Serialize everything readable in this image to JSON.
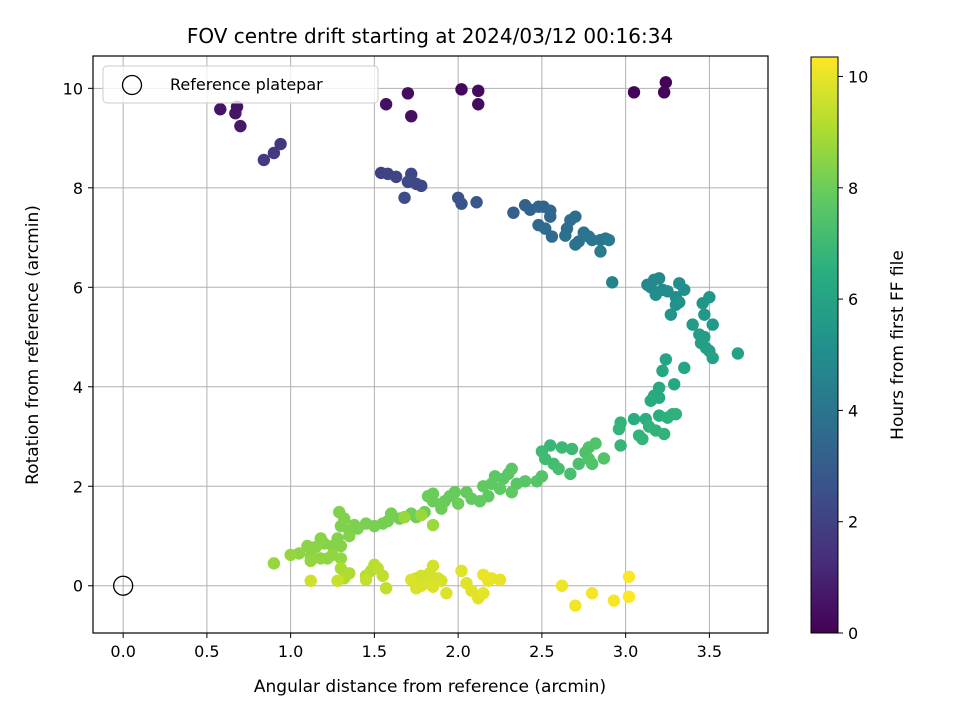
{
  "chart_data": {
    "type": "scatter",
    "title": "FOV centre drift starting at 2024/03/12 00:16:34",
    "xlabel": "Angular distance from reference (arcmin)",
    "ylabel": "Rotation from reference (arcmin)",
    "xlim": [
      -0.18,
      3.85
    ],
    "ylim": [
      -0.95,
      10.65
    ],
    "xticks": [
      0.0,
      0.5,
      1.0,
      1.5,
      2.0,
      2.5,
      3.0,
      3.5
    ],
    "xtick_labels": [
      "0.0",
      "0.5",
      "1.0",
      "1.5",
      "2.0",
      "2.5",
      "3.0",
      "3.5"
    ],
    "yticks": [
      0,
      2,
      4,
      6,
      8,
      10
    ],
    "ytick_labels": [
      "0",
      "2",
      "4",
      "6",
      "8",
      "10"
    ],
    "grid": true,
    "legend": {
      "position": "top-left",
      "entries": [
        "Reference platepar"
      ]
    },
    "reference_point": {
      "x": 0.0,
      "y": 0.0
    },
    "colorbar": {
      "label": "Hours from first FF file",
      "min": 0,
      "max": 10.35,
      "ticks": [
        0,
        2,
        4,
        6,
        8,
        10
      ],
      "tick_labels": [
        "0",
        "2",
        "4",
        "6",
        "8",
        "10"
      ],
      "colormap": "viridis"
    },
    "points": [
      [
        3.24,
        10.12,
        0.05
      ],
      [
        3.05,
        9.92,
        0.1
      ],
      [
        3.23,
        9.92,
        0.15
      ],
      [
        2.02,
        9.98,
        0.2
      ],
      [
        2.12,
        9.95,
        0.25
      ],
      [
        2.12,
        9.68,
        0.3
      ],
      [
        1.7,
        9.9,
        0.35
      ],
      [
        1.72,
        9.44,
        0.4
      ],
      [
        1.57,
        9.68,
        0.45
      ],
      [
        0.68,
        9.63,
        0.5
      ],
      [
        0.58,
        9.58,
        0.55
      ],
      [
        0.67,
        9.5,
        0.6
      ],
      [
        0.7,
        9.24,
        0.7
      ],
      [
        0.94,
        8.88,
        1.6
      ],
      [
        0.9,
        8.7,
        1.7
      ],
      [
        0.84,
        8.56,
        1.8
      ],
      [
        1.54,
        8.3,
        2.0
      ],
      [
        1.58,
        8.28,
        2.05
      ],
      [
        1.63,
        8.22,
        2.1
      ],
      [
        1.72,
        8.28,
        2.15
      ],
      [
        1.75,
        8.08,
        2.2
      ],
      [
        1.78,
        8.04,
        2.25
      ],
      [
        1.7,
        8.12,
        2.3
      ],
      [
        1.68,
        7.8,
        2.4
      ],
      [
        2.0,
        7.8,
        2.6
      ],
      [
        2.02,
        7.68,
        2.7
      ],
      [
        2.11,
        7.71,
        2.8
      ],
      [
        2.33,
        7.5,
        3.1
      ],
      [
        2.4,
        7.65,
        3.2
      ],
      [
        2.43,
        7.56,
        3.25
      ],
      [
        2.48,
        7.62,
        3.3
      ],
      [
        2.51,
        7.62,
        3.35
      ],
      [
        2.55,
        7.42,
        3.4
      ],
      [
        2.55,
        7.54,
        3.45
      ],
      [
        2.48,
        7.25,
        3.5
      ],
      [
        2.52,
        7.18,
        3.55
      ],
      [
        2.56,
        7.02,
        3.6
      ],
      [
        2.65,
        7.18,
        3.65
      ],
      [
        2.67,
        7.35,
        3.7
      ],
      [
        2.7,
        7.42,
        3.75
      ],
      [
        2.64,
        7.04,
        3.8
      ],
      [
        2.72,
        6.92,
        3.85
      ],
      [
        2.7,
        6.86,
        3.9
      ],
      [
        2.75,
        7.1,
        3.95
      ],
      [
        2.78,
        7.02,
        4.0
      ],
      [
        2.8,
        6.95,
        4.05
      ],
      [
        2.85,
        6.95,
        4.1
      ],
      [
        2.88,
        6.98,
        4.15
      ],
      [
        2.9,
        6.95,
        4.2
      ],
      [
        2.85,
        6.72,
        4.25
      ],
      [
        2.92,
        6.1,
        4.6
      ],
      [
        3.13,
        6.05,
        4.7
      ],
      [
        3.17,
        6.15,
        4.75
      ],
      [
        3.2,
        6.18,
        4.8
      ],
      [
        3.15,
        6.0,
        4.85
      ],
      [
        3.22,
        5.95,
        4.9
      ],
      [
        3.18,
        5.85,
        4.95
      ],
      [
        3.25,
        5.92,
        5.0
      ],
      [
        3.3,
        5.8,
        5.05
      ],
      [
        3.32,
        6.08,
        5.1
      ],
      [
        3.35,
        5.95,
        5.15
      ],
      [
        3.3,
        5.65,
        5.2
      ],
      [
        3.32,
        5.7,
        5.25
      ],
      [
        3.27,
        5.45,
        5.3
      ],
      [
        3.46,
        5.68,
        5.4
      ],
      [
        3.5,
        5.8,
        5.45
      ],
      [
        3.47,
        5.45,
        5.5
      ],
      [
        3.52,
        5.25,
        5.55
      ],
      [
        3.4,
        5.25,
        5.6
      ],
      [
        3.44,
        5.05,
        5.65
      ],
      [
        3.47,
        5.0,
        5.7
      ],
      [
        3.45,
        4.88,
        5.75
      ],
      [
        3.48,
        4.78,
        5.8
      ],
      [
        3.5,
        4.72,
        5.85
      ],
      [
        3.52,
        4.58,
        5.9
      ],
      [
        3.67,
        4.67,
        5.95
      ],
      [
        3.24,
        4.55,
        6.0
      ],
      [
        3.35,
        4.38,
        6.05
      ],
      [
        3.22,
        4.32,
        6.1
      ],
      [
        3.29,
        4.05,
        6.15
      ],
      [
        3.2,
        3.98,
        6.2
      ],
      [
        3.17,
        3.82,
        6.25
      ],
      [
        3.2,
        3.78,
        6.3
      ],
      [
        3.15,
        3.72,
        6.35
      ],
      [
        3.05,
        3.35,
        6.4
      ],
      [
        3.12,
        3.35,
        6.45
      ],
      [
        3.2,
        3.42,
        6.5
      ],
      [
        3.25,
        3.38,
        6.55
      ],
      [
        3.28,
        3.45,
        6.6
      ],
      [
        3.3,
        3.45,
        6.62
      ],
      [
        3.14,
        3.2,
        6.65
      ],
      [
        3.18,
        3.12,
        6.68
      ],
      [
        3.23,
        3.05,
        6.7
      ],
      [
        3.08,
        3.02,
        6.72
      ],
      [
        3.1,
        2.95,
        6.74
      ],
      [
        2.97,
        3.28,
        6.76
      ],
      [
        2.96,
        3.15,
        6.78
      ],
      [
        2.97,
        2.82,
        6.8
      ],
      [
        2.55,
        2.82,
        6.9
      ],
      [
        2.62,
        2.78,
        6.95
      ],
      [
        2.68,
        2.75,
        7.0
      ],
      [
        2.5,
        2.7,
        7.05
      ],
      [
        2.52,
        2.55,
        7.1
      ],
      [
        2.57,
        2.45,
        7.15
      ],
      [
        2.6,
        2.35,
        7.2
      ],
      [
        2.67,
        2.25,
        7.25
      ],
      [
        2.72,
        2.45,
        7.3
      ],
      [
        2.76,
        2.68,
        7.35
      ],
      [
        2.78,
        2.78,
        7.4
      ],
      [
        2.82,
        2.86,
        7.42
      ],
      [
        2.78,
        2.55,
        7.44
      ],
      [
        2.8,
        2.45,
        7.46
      ],
      [
        2.87,
        2.56,
        7.48
      ],
      [
        2.5,
        2.2,
        7.5
      ],
      [
        2.47,
        2.1,
        7.55
      ],
      [
        2.4,
        2.1,
        7.6
      ],
      [
        2.35,
        2.05,
        7.62
      ],
      [
        2.3,
        2.25,
        7.64
      ],
      [
        2.32,
        2.35,
        7.66
      ],
      [
        2.27,
        2.15,
        7.68
      ],
      [
        2.22,
        2.2,
        7.7
      ],
      [
        2.2,
        2.05,
        7.72
      ],
      [
        2.25,
        1.95,
        7.74
      ],
      [
        2.32,
        1.88,
        7.76
      ],
      [
        2.18,
        1.8,
        7.78
      ],
      [
        2.15,
        2.0,
        7.8
      ],
      [
        2.13,
        1.7,
        7.82
      ],
      [
        2.08,
        1.75,
        7.84
      ],
      [
        2.05,
        1.88,
        7.86
      ],
      [
        1.98,
        1.88,
        7.88
      ],
      [
        1.95,
        1.8,
        7.9
      ],
      [
        1.92,
        1.7,
        7.92
      ],
      [
        1.85,
        1.85,
        7.94
      ],
      [
        1.82,
        1.8,
        7.96
      ],
      [
        1.85,
        1.7,
        7.98
      ],
      [
        1.9,
        1.55,
        8.0
      ],
      [
        2.0,
        1.65,
        8.02
      ],
      [
        1.8,
        1.48,
        8.04
      ],
      [
        1.75,
        1.38,
        8.06
      ],
      [
        1.72,
        1.45,
        8.08
      ],
      [
        1.68,
        1.38,
        8.1
      ],
      [
        1.65,
        1.35,
        8.12
      ],
      [
        1.6,
        1.45,
        8.14
      ],
      [
        1.58,
        1.3,
        8.16
      ],
      [
        1.55,
        1.25,
        8.18
      ],
      [
        1.5,
        1.2,
        8.2
      ],
      [
        1.45,
        1.25,
        8.22
      ],
      [
        1.4,
        1.15,
        8.24
      ],
      [
        1.38,
        1.22,
        8.26
      ],
      [
        1.35,
        1.12,
        8.28
      ],
      [
        1.3,
        1.2,
        8.3
      ],
      [
        1.29,
        1.48,
        8.32
      ],
      [
        1.32,
        1.35,
        8.34
      ],
      [
        1.35,
        1.0,
        8.36
      ],
      [
        1.28,
        0.95,
        8.38
      ],
      [
        1.3,
        0.8,
        8.4
      ],
      [
        1.25,
        0.8,
        8.42
      ],
      [
        1.2,
        0.85,
        8.44
      ],
      [
        1.18,
        0.95,
        8.46
      ],
      [
        1.15,
        0.78,
        8.48
      ],
      [
        1.1,
        0.8,
        8.5
      ],
      [
        1.05,
        0.65,
        8.52
      ],
      [
        1.12,
        0.6,
        8.54
      ],
      [
        1.18,
        0.55,
        8.56
      ],
      [
        1.22,
        0.55,
        8.58
      ],
      [
        1.25,
        0.62,
        8.6
      ],
      [
        1.3,
        0.55,
        8.62
      ],
      [
        1.12,
        0.5,
        8.64
      ],
      [
        1.0,
        0.62,
        8.66
      ],
      [
        0.9,
        0.45,
        8.7
      ],
      [
        1.68,
        1.38,
        8.72
      ],
      [
        1.78,
        1.42,
        8.74
      ],
      [
        1.85,
        1.22,
        8.76
      ],
      [
        1.3,
        0.35,
        9.0
      ],
      [
        1.35,
        0.25,
        9.05
      ],
      [
        1.32,
        0.15,
        9.1
      ],
      [
        1.45,
        0.2,
        9.15
      ],
      [
        1.48,
        0.3,
        9.2
      ],
      [
        1.5,
        0.42,
        9.25
      ],
      [
        1.52,
        0.35,
        9.3
      ],
      [
        1.55,
        0.2,
        9.35
      ],
      [
        1.57,
        -0.05,
        9.4
      ],
      [
        1.45,
        0.12,
        9.45
      ],
      [
        1.28,
        0.1,
        9.5
      ],
      [
        1.12,
        0.1,
        9.55
      ],
      [
        1.75,
        0.15,
        9.6
      ],
      [
        1.78,
        0.2,
        9.62
      ],
      [
        1.8,
        0.18,
        9.64
      ],
      [
        1.83,
        0.25,
        9.66
      ],
      [
        1.85,
        0.4,
        9.68
      ],
      [
        1.88,
        0.15,
        9.7
      ],
      [
        1.9,
        0.1,
        9.72
      ],
      [
        1.82,
        0.05,
        9.74
      ],
      [
        1.78,
        0.0,
        9.76
      ],
      [
        1.72,
        0.12,
        9.78
      ],
      [
        1.75,
        -0.05,
        9.8
      ],
      [
        1.85,
        -0.02,
        9.82
      ],
      [
        1.93,
        -0.15,
        9.84
      ],
      [
        2.02,
        0.3,
        9.86
      ],
      [
        2.05,
        0.05,
        9.88
      ],
      [
        2.08,
        -0.1,
        9.9
      ],
      [
        2.12,
        -0.25,
        9.92
      ],
      [
        2.15,
        -0.15,
        9.94
      ],
      [
        2.18,
        0.1,
        9.96
      ],
      [
        2.2,
        0.15,
        9.98
      ],
      [
        2.25,
        0.12,
        10.0
      ],
      [
        2.15,
        0.22,
        10.02
      ],
      [
        2.62,
        0.0,
        10.1
      ],
      [
        2.7,
        -0.4,
        10.15
      ],
      [
        2.8,
        -0.15,
        10.2
      ],
      [
        2.93,
        -0.3,
        10.25
      ],
      [
        3.02,
        0.18,
        10.3
      ],
      [
        3.02,
        -0.22,
        10.35
      ]
    ]
  }
}
